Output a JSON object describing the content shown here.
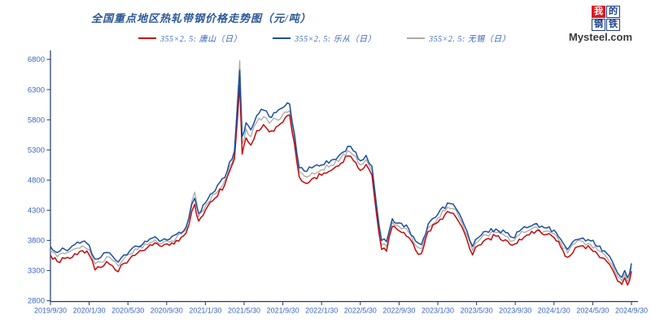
{
  "header": {
    "title": "全国重点地区热轧带钢价格走势图（元/吨）"
  },
  "logo": {
    "grid": [
      "我",
      "的",
      "钢",
      "铁"
    ],
    "site": "Mysteel.com",
    "red_bg": "#DD1820",
    "blue": "#1C3E91"
  },
  "colors": {
    "title": "#2B5797",
    "legend_text": "#3565C0",
    "axis_label": "#3B66C4",
    "axis_line": "#1F3864",
    "series_red": "#C40A0A",
    "series_blue": "#1D4F9C",
    "series_gray": "#AAAAAA"
  },
  "chart_data": {
    "type": "line",
    "title": "全国重点地区热轧带钢价格走势图（元/吨）",
    "unit": "元/吨",
    "grid": false,
    "legend_position": "top",
    "ylim": [
      2800,
      6800
    ],
    "y_ticks": [
      2800,
      3300,
      3800,
      4300,
      4800,
      5300,
      5800,
      6300,
      6800
    ],
    "x_unit": "months_since_2019/9/30",
    "x_range": [
      0,
      60
    ],
    "x_tick_interval_months": 4,
    "x_tick_labels": [
      "2019/9/30",
      "2020/1/30",
      "2020/5/30",
      "2020/9/30",
      "2021/1/30",
      "2021/5/30",
      "2021/9/30",
      "2022/1/30",
      "2022/5/30",
      "2022/9/30",
      "2023/1/30",
      "2023/5/30",
      "2023/9/30",
      "2024/1/30",
      "2024/5/30",
      "2024/9/30"
    ],
    "x": [
      0,
      0.7,
      1.5,
      2.5,
      3.3,
      4,
      4.6,
      5.2,
      5.8,
      6.4,
      7,
      7.6,
      8.2,
      9,
      10,
      10.8,
      11.5,
      12.3,
      13,
      14,
      14.6,
      14.9,
      15.3,
      16,
      17,
      18,
      19,
      19.55,
      19.8,
      20.2,
      20.7,
      21.3,
      22,
      22.6,
      23.3,
      24,
      24.7,
      25.2,
      25.7,
      26.2,
      27,
      28,
      29,
      30,
      30.7,
      31.3,
      32,
      32.6,
      33.2,
      33.7,
      34.2,
      34.7,
      35.3,
      36,
      37,
      37.7,
      38.3,
      39,
      40,
      41,
      41.6,
      42.2,
      43,
      43.6,
      44.2,
      45,
      46,
      47,
      47.7,
      48.4,
      49.2,
      50.2,
      51,
      52,
      52.7,
      53.4,
      54.2,
      55,
      55.8,
      56.5,
      57.2,
      58,
      58.6,
      59,
      59.3,
      59.6,
      59.8,
      60
    ],
    "series": [
      {
        "id": "tangshan",
        "name": "355×2. 5: 唐山（日）",
        "color": "#C40A0A",
        "width": 1.5,
        "values": [
          3560,
          3450,
          3500,
          3580,
          3630,
          3560,
          3310,
          3350,
          3450,
          3380,
          3280,
          3420,
          3500,
          3590,
          3680,
          3760,
          3700,
          3720,
          3800,
          3920,
          4280,
          4400,
          4120,
          4300,
          4500,
          4720,
          5150,
          6380,
          5230,
          5500,
          5380,
          5620,
          5720,
          5600,
          5680,
          5760,
          5880,
          5400,
          4850,
          4760,
          4820,
          4880,
          4960,
          5080,
          5200,
          5120,
          4960,
          5060,
          4880,
          4200,
          3650,
          3620,
          4030,
          3960,
          3850,
          3640,
          3580,
          3950,
          4100,
          4280,
          4250,
          4100,
          3820,
          3560,
          3720,
          3820,
          3870,
          3810,
          3720,
          3820,
          3890,
          3960,
          3890,
          3850,
          3690,
          3520,
          3680,
          3710,
          3660,
          3570,
          3500,
          3330,
          3120,
          3070,
          3180,
          3060,
          3130,
          3290
        ]
      },
      {
        "id": "lecong",
        "name": "355×2. 5: 乐从（日）",
        "color": "#1D4F9C",
        "width": 1.5,
        "values": [
          3700,
          3600,
          3650,
          3730,
          3780,
          3720,
          3490,
          3520,
          3600,
          3540,
          3440,
          3560,
          3630,
          3700,
          3780,
          3860,
          3800,
          3820,
          3900,
          4020,
          4400,
          4500,
          4250,
          4420,
          4620,
          4840,
          5280,
          6620,
          5520,
          5750,
          5630,
          5870,
          5960,
          5850,
          5920,
          6000,
          6060,
          5560,
          5000,
          4950,
          5000,
          5050,
          5130,
          5240,
          5360,
          5280,
          5120,
          5210,
          5030,
          4350,
          3800,
          3780,
          4160,
          4090,
          3990,
          3790,
          3730,
          4070,
          4230,
          4420,
          4400,
          4250,
          3960,
          3700,
          3850,
          3950,
          3990,
          3930,
          3850,
          3950,
          4010,
          4080,
          4010,
          3970,
          3820,
          3650,
          3810,
          3840,
          3790,
          3700,
          3630,
          3460,
          3250,
          3190,
          3300,
          3180,
          3250,
          3420
        ]
      },
      {
        "id": "wuxi",
        "name": "355×2. 5: 无锡（日）",
        "color": "#AAAAAA",
        "width": 1.3,
        "values": [
          3630,
          3530,
          3580,
          3660,
          3710,
          3650,
          3410,
          3440,
          3530,
          3470,
          3370,
          3500,
          3570,
          3650,
          3730,
          3810,
          3750,
          3770,
          3850,
          3970,
          4450,
          4600,
          4190,
          4370,
          4570,
          4790,
          5220,
          6780,
          5400,
          5650,
          5520,
          5760,
          5850,
          5740,
          5810,
          5890,
          5950,
          5470,
          4930,
          4870,
          4920,
          4970,
          5050,
          5170,
          5290,
          5210,
          5050,
          5140,
          4960,
          4280,
          3720,
          3700,
          4100,
          4030,
          3930,
          3720,
          3660,
          4010,
          4170,
          4350,
          4330,
          4180,
          3890,
          3630,
          3790,
          3890,
          3930,
          3870,
          3790,
          3890,
          3950,
          4020,
          3950,
          3910,
          3760,
          3590,
          3750,
          3780,
          3730,
          3640,
          3570,
          3400,
          3190,
          3130,
          3240,
          3120,
          3190,
          3360
        ]
      }
    ]
  }
}
